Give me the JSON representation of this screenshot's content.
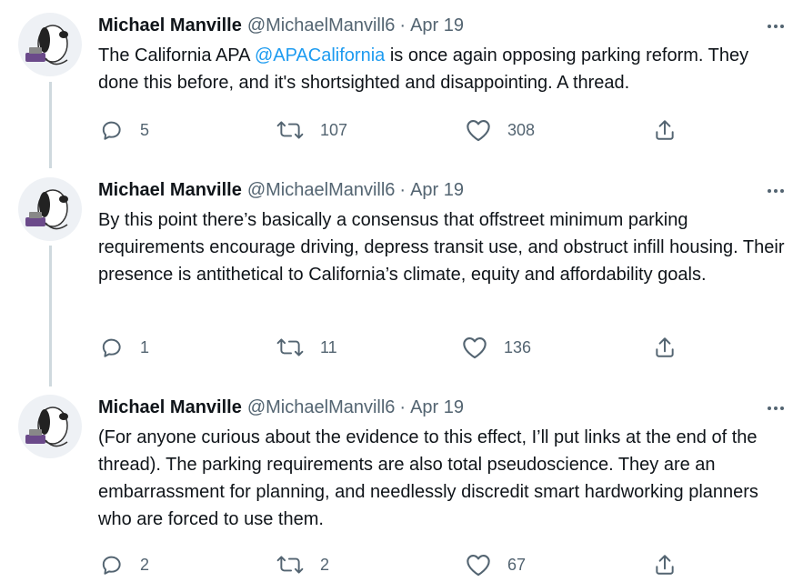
{
  "tweets": [
    {
      "name": "Michael Manville",
      "handle": "@MichaelManvill6",
      "separator": "·",
      "date": "Apr 19",
      "text_before": "The California APA ",
      "mention": "@APACalifornia",
      "text_after": " is once again opposing parking reform. They done this before, and it's shortsighted and disappointing. A thread.",
      "replies": "5",
      "retweets": "107",
      "likes": "308"
    },
    {
      "name": "Michael Manville",
      "handle": "@MichaelManvill6",
      "separator": "·",
      "date": "Apr 19",
      "text": "By this point there’s basically a consensus that offstreet minimum parking requirements encourage driving, depress transit use, and obstruct infill housing. Their presence is antithetical to California’s climate, equity and affordability goals.",
      "replies": "1",
      "retweets": "11",
      "likes": "136"
    },
    {
      "name": "Michael Manville",
      "handle": "@MichaelManvill6",
      "separator": "·",
      "date": "Apr 19",
      "text": "(For anyone curious about the evidence to this effect, I’ll put links at the end of the thread). The parking requirements are also total pseudoscience. They are an embarrassment for planning, and needlessly discredit smart hardworking planners who are forced to use them.",
      "replies": "2",
      "retweets": "2",
      "likes": "67"
    }
  ],
  "icons": {
    "avatar": "snoopy-avatar-icon",
    "more": "more-options-icon",
    "reply": "reply-icon",
    "retweet": "retweet-icon",
    "like": "like-icon",
    "share": "share-icon"
  },
  "colors": {
    "link": "#1d9bf0",
    "secondary": "#536471",
    "thread_line": "#cfd9de"
  }
}
